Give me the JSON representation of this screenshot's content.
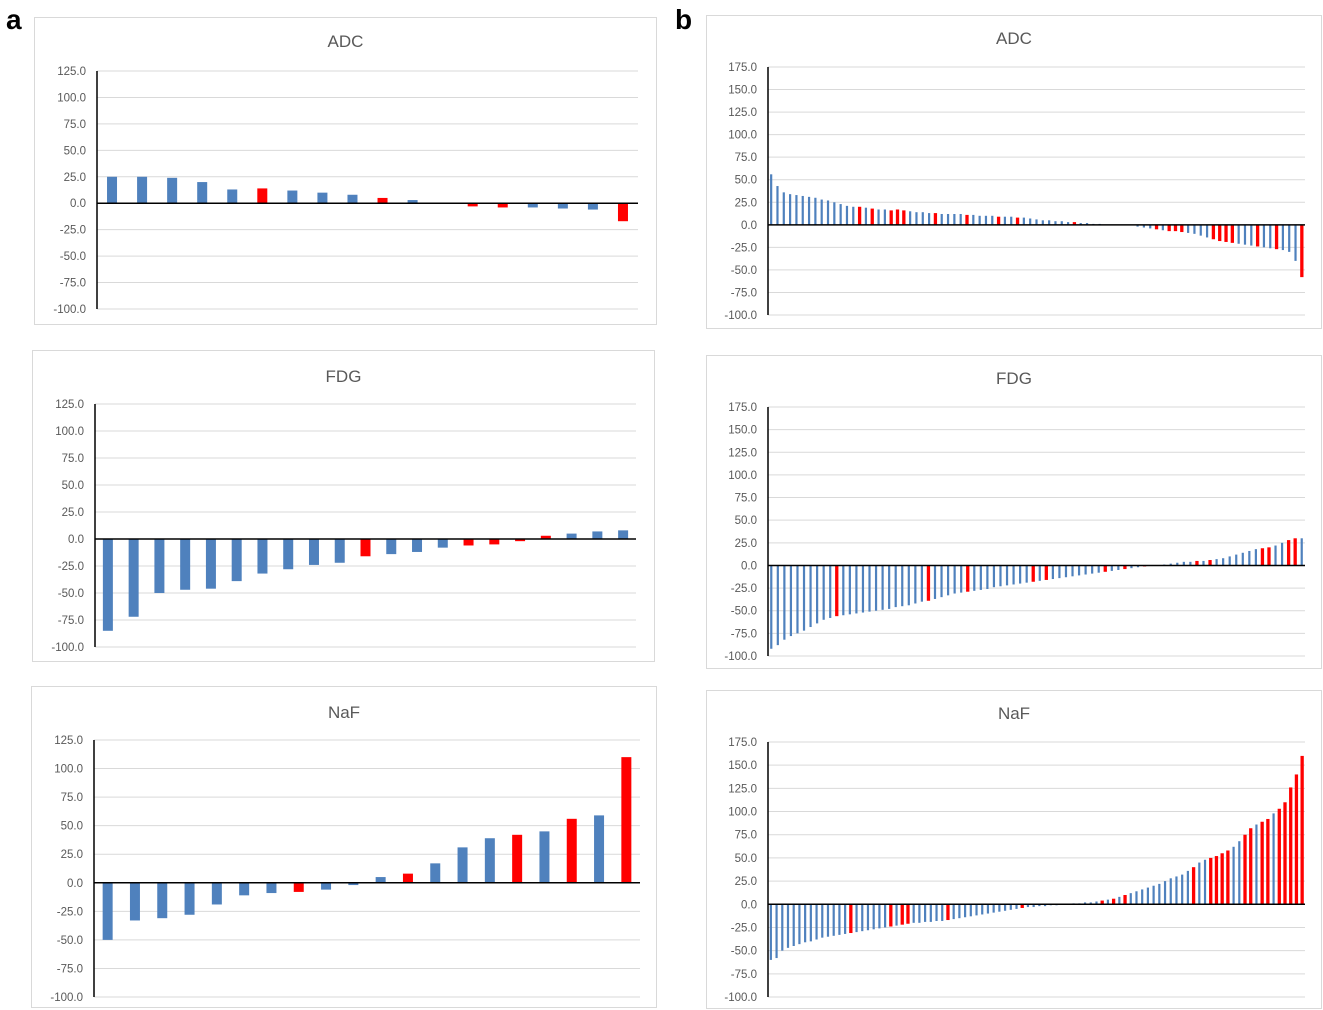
{
  "panels": [
    {
      "letter": "a"
    },
    {
      "letter": "b"
    }
  ],
  "colors": {
    "responder": "#ff0000",
    "nonresponder": "#4f81bd"
  },
  "chart_data": [
    {
      "type": "bar",
      "panel": "a",
      "title": "ADC",
      "ylim": [
        -100,
        125
      ],
      "yticks": [
        "125.0",
        "100.0",
        "75.0",
        "50.0",
        "25.0",
        "0.0",
        "-25.0",
        "-50.0",
        "-75.0",
        "-100.0"
      ],
      "values": [
        25,
        25,
        24,
        20,
        13,
        14,
        12,
        10,
        8,
        5,
        3,
        0,
        -3,
        -4,
        -4,
        -5,
        -6,
        -17
      ],
      "colors": [
        "B",
        "B",
        "B",
        "B",
        "B",
        "R",
        "B",
        "B",
        "B",
        "R",
        "B",
        "B",
        "R",
        "R",
        "B",
        "B",
        "B",
        "R"
      ],
      "grid": true
    },
    {
      "type": "bar",
      "panel": "a",
      "title": "FDG",
      "ylim": [
        -100,
        125
      ],
      "yticks": [
        "125.0",
        "100.0",
        "75.0",
        "50.0",
        "25.0",
        "0.0",
        "-25.0",
        "-50.0",
        "-75.0",
        "-100.0"
      ],
      "values": [
        -85,
        -72,
        -50,
        -47,
        -46,
        -39,
        -32,
        -28,
        -24,
        -22,
        -16,
        -14,
        -12,
        -8,
        -6,
        -5,
        -2,
        3,
        5,
        7,
        8
      ],
      "colors": [
        "B",
        "B",
        "B",
        "B",
        "B",
        "B",
        "B",
        "B",
        "B",
        "B",
        "R",
        "B",
        "B",
        "B",
        "R",
        "R",
        "R",
        "R",
        "B",
        "B",
        "B"
      ],
      "grid": true
    },
    {
      "type": "bar",
      "panel": "a",
      "title": "NaF",
      "ylim": [
        -100,
        125
      ],
      "yticks": [
        "125.0",
        "100.0",
        "75.0",
        "50.0",
        "25.0",
        "0.0",
        "-25.0",
        "-50.0",
        "-75.0",
        "-100.0"
      ],
      "values": [
        -50,
        -33,
        -31,
        -28,
        -19,
        -11,
        -9,
        -8,
        -6,
        -2,
        5,
        8,
        17,
        31,
        39,
        42,
        45,
        56,
        59,
        110
      ],
      "colors": [
        "B",
        "B",
        "B",
        "B",
        "B",
        "B",
        "B",
        "R",
        "B",
        "B",
        "B",
        "R",
        "B",
        "B",
        "B",
        "R",
        "B",
        "R",
        "B",
        "R"
      ],
      "grid": true
    },
    {
      "type": "bar",
      "panel": "b",
      "title": "ADC",
      "ylim": [
        -100,
        175
      ],
      "yticks": [
        "175.0",
        "150.0",
        "125.0",
        "100.0",
        "75.0",
        "50.0",
        "25.0",
        "0.0",
        "-25.0",
        "-50.0",
        "-75.0",
        "-100.0"
      ],
      "values": [
        56,
        43,
        36,
        34,
        33,
        32,
        31,
        30,
        28,
        27,
        25,
        23,
        21,
        20,
        20,
        19,
        18,
        17,
        17,
        16,
        17,
        16,
        15,
        14,
        14,
        13,
        13,
        12,
        12,
        12,
        12,
        11,
        11,
        10,
        10,
        10,
        9,
        9,
        9,
        8,
        8,
        7,
        6,
        5,
        5,
        4,
        4,
        3,
        3,
        2,
        2,
        1,
        1,
        0,
        0,
        0,
        0,
        0,
        -2,
        -3,
        -4,
        -5,
        -6,
        -7,
        -7,
        -8,
        -9,
        -10,
        -12,
        -14,
        -16,
        -18,
        -19,
        -20,
        -21,
        -22,
        -23,
        -24,
        -25,
        -26,
        -27,
        -28,
        -30,
        -40,
        -58
      ],
      "colors": [
        "B",
        "B",
        "B",
        "B",
        "B",
        "B",
        "B",
        "B",
        "B",
        "B",
        "B",
        "B",
        "B",
        "B",
        "R",
        "B",
        "R",
        "B",
        "B",
        "R",
        "R",
        "R",
        "B",
        "B",
        "B",
        "B",
        "R",
        "B",
        "B",
        "B",
        "B",
        "R",
        "B",
        "B",
        "B",
        "B",
        "R",
        "B",
        "B",
        "R",
        "B",
        "B",
        "B",
        "B",
        "B",
        "B",
        "B",
        "B",
        "R",
        "B",
        "B",
        "B",
        "B",
        "B",
        "B",
        "B",
        "B",
        "B",
        "B",
        "B",
        "B",
        "R",
        "B",
        "R",
        "R",
        "R",
        "B",
        "B",
        "B",
        "B",
        "R",
        "R",
        "R",
        "R",
        "B",
        "B",
        "B",
        "R",
        "B",
        "B",
        "R",
        "B",
        "B",
        "B",
        "R"
      ],
      "grid": true
    },
    {
      "type": "bar",
      "panel": "b",
      "title": "FDG",
      "ylim": [
        -100,
        175
      ],
      "yticks": [
        "175.0",
        "150.0",
        "125.0",
        "100.0",
        "75.0",
        "50.0",
        "25.0",
        "0.0",
        "-25.0",
        "-50.0",
        "-75.0",
        "-100.0"
      ],
      "values": [
        -92,
        -88,
        -82,
        -78,
        -75,
        -72,
        -68,
        -64,
        -60,
        -58,
        -56,
        -55,
        -54,
        -53,
        -52,
        -51,
        -50,
        -49,
        -48,
        -46,
        -45,
        -44,
        -42,
        -40,
        -39,
        -37,
        -35,
        -33,
        -31,
        -30,
        -29,
        -28,
        -27,
        -26,
        -24,
        -23,
        -22,
        -21,
        -20,
        -19,
        -18,
        -17,
        -16,
        -15,
        -14,
        -13,
        -12,
        -11,
        -10,
        -9,
        -8,
        -7,
        -6,
        -5,
        -4,
        -3,
        -2,
        -1,
        0,
        0,
        1,
        2,
        3,
        4,
        4,
        5,
        5,
        6,
        7,
        8,
        10,
        12,
        14,
        16,
        18,
        19,
        20,
        22,
        25,
        28,
        30,
        30
      ],
      "colors": [
        "B",
        "B",
        "B",
        "B",
        "B",
        "B",
        "B",
        "B",
        "B",
        "B",
        "R",
        "B",
        "B",
        "B",
        "B",
        "B",
        "B",
        "B",
        "B",
        "B",
        "B",
        "B",
        "B",
        "B",
        "R",
        "B",
        "B",
        "B",
        "B",
        "B",
        "R",
        "B",
        "B",
        "B",
        "B",
        "B",
        "B",
        "B",
        "B",
        "B",
        "R",
        "B",
        "R",
        "B",
        "B",
        "B",
        "B",
        "B",
        "B",
        "B",
        "B",
        "R",
        "B",
        "B",
        "R",
        "B",
        "B",
        "R",
        "B",
        "B",
        "B",
        "B",
        "B",
        "B",
        "B",
        "R",
        "B",
        "R",
        "B",
        "B",
        "B",
        "B",
        "B",
        "B",
        "B",
        "R",
        "R",
        "B",
        "B",
        "R",
        "R",
        "B"
      ],
      "grid": true
    },
    {
      "type": "bar",
      "panel": "b",
      "title": "NaF",
      "ylim": [
        -100,
        175
      ],
      "yticks": [
        "175.0",
        "150.0",
        "125.0",
        "100.0",
        "75.0",
        "50.0",
        "25.0",
        "0.0",
        "-25.0",
        "-50.0",
        "-75.0",
        "-100.0"
      ],
      "values": [
        -60,
        -58,
        -50,
        -47,
        -45,
        -43,
        -41,
        -40,
        -38,
        -36,
        -35,
        -34,
        -33,
        -32,
        -31,
        -30,
        -29,
        -28,
        -27,
        -26,
        -25,
        -24,
        -23,
        -22,
        -21,
        -20,
        -20,
        -19,
        -19,
        -18,
        -18,
        -17,
        -16,
        -15,
        -14,
        -13,
        -12,
        -11,
        -10,
        -9,
        -8,
        -7,
        -6,
        -5,
        -4,
        -3,
        -3,
        -2,
        -2,
        -1,
        -1,
        0,
        0,
        1,
        1,
        2,
        2,
        3,
        4,
        5,
        6,
        8,
        10,
        12,
        14,
        16,
        18,
        20,
        22,
        25,
        28,
        30,
        32,
        36,
        40,
        45,
        48,
        50,
        52,
        55,
        58,
        62,
        68,
        75,
        82,
        86,
        89,
        92,
        98,
        103,
        110,
        126,
        140,
        160
      ],
      "colors": [
        "B",
        "B",
        "B",
        "B",
        "B",
        "B",
        "B",
        "B",
        "B",
        "B",
        "B",
        "B",
        "B",
        "B",
        "R",
        "B",
        "B",
        "B",
        "B",
        "B",
        "B",
        "R",
        "B",
        "R",
        "R",
        "B",
        "B",
        "B",
        "B",
        "B",
        "B",
        "R",
        "B",
        "B",
        "B",
        "B",
        "B",
        "B",
        "B",
        "B",
        "B",
        "B",
        "B",
        "B",
        "R",
        "B",
        "B",
        "B",
        "B",
        "B",
        "B",
        "B",
        "B",
        "B",
        "B",
        "B",
        "B",
        "B",
        "R",
        "B",
        "R",
        "B",
        "R",
        "B",
        "B",
        "B",
        "B",
        "B",
        "B",
        "B",
        "B",
        "B",
        "B",
        "B",
        "R",
        "B",
        "B",
        "R",
        "R",
        "R",
        "R",
        "B",
        "B",
        "R",
        "R",
        "B",
        "R",
        "R",
        "B",
        "R",
        "R",
        "R",
        "R",
        "R"
      ],
      "grid": true
    }
  ]
}
